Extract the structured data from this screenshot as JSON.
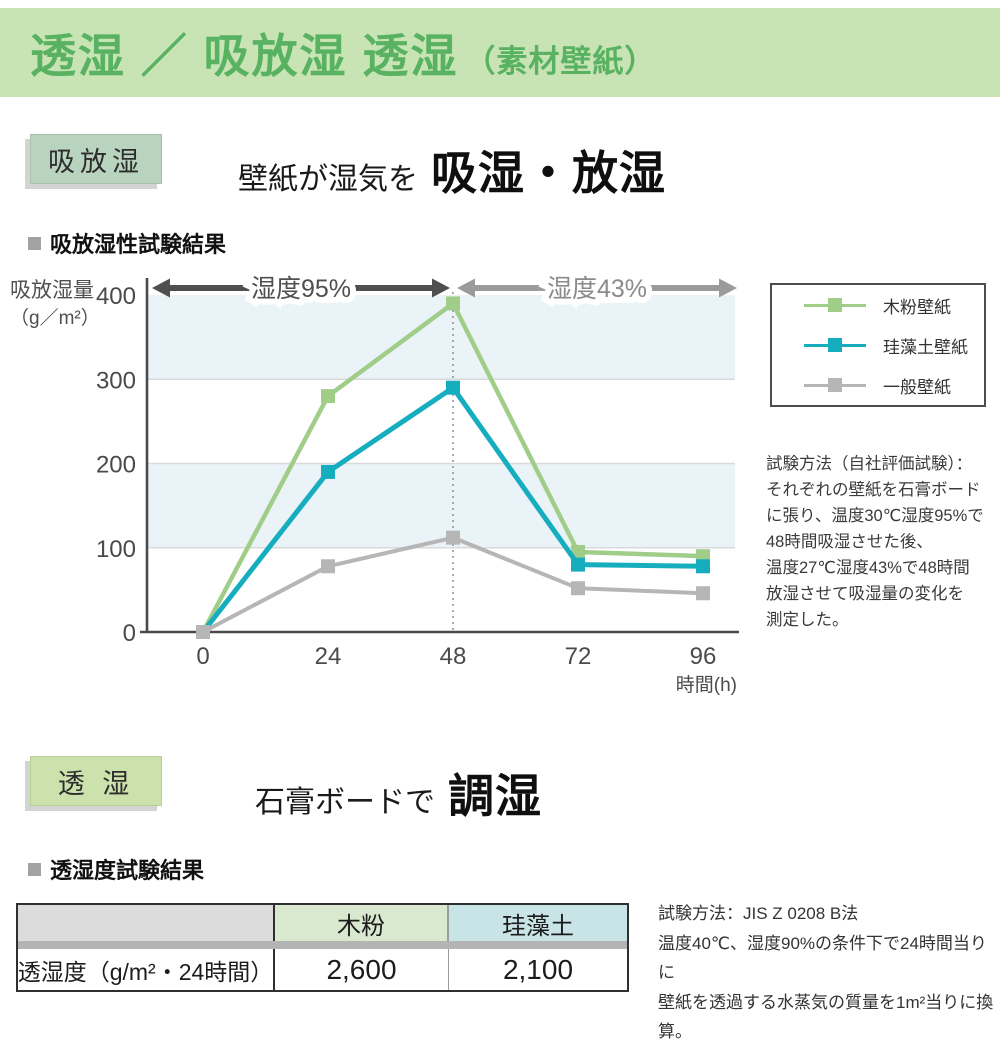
{
  "header": {
    "title_main": "透湿 ／ 吸放湿 透湿",
    "title_sub": "（素材壁紙）"
  },
  "section_absorption": {
    "tag": "吸放湿",
    "lead": "壁紙が湿気を",
    "headline": "吸湿・放湿",
    "result_heading": "吸放湿性試験結果",
    "method_note": "試験方法（自社評価試験）：\nそれぞれの壁紙を石膏ボード\nに張り、温度30℃湿度95%で\n48時間吸湿させた後、\n温度27℃湿度43%で48時間\n放湿させて吸湿量の変化を\n測定した。"
  },
  "chart_data": {
    "type": "line",
    "x": [
      0,
      24,
      48,
      72,
      96
    ],
    "xlabel": "時間(h)",
    "ylabel_lines": [
      "吸放湿量",
      "（g／m²）"
    ],
    "ylim": [
      0,
      400
    ],
    "yticks": [
      0,
      100,
      200,
      300,
      400
    ],
    "grid": true,
    "legend_position": "right",
    "bands": {
      "ranges": [
        [
          300,
          400
        ],
        [
          100,
          200
        ]
      ],
      "color": "#eaf3f7"
    },
    "dashed_line_x": 48,
    "series": [
      {
        "name": "木粉壁紙",
        "color": "#a0ce89",
        "values": [
          0,
          280,
          390,
          95,
          90
        ]
      },
      {
        "name": "珪藻土壁紙",
        "color": "#16adbf",
        "values": [
          0,
          190,
          290,
          80,
          78
        ]
      },
      {
        "name": "一般壁紙",
        "color": "#b6b6b6",
        "values": [
          0,
          78,
          112,
          52,
          46
        ]
      }
    ],
    "phase_arrows": [
      {
        "label": "湿度95%",
        "x_from": 0,
        "x_to": 48,
        "color": "#4f4f4f",
        "label_color": "#4f4f4f"
      },
      {
        "label": "湿度43%",
        "x_from": 48,
        "x_to": 96,
        "color": "#9b9b9b",
        "label_color": "#8a8a8a"
      }
    ]
  },
  "section_permeability": {
    "tag": "透 湿",
    "lead": "石膏ボードで",
    "headline": "調湿",
    "result_heading": "透湿度試験結果",
    "table": {
      "row_header": "透湿度（g/m²・24時間）",
      "columns": [
        "木粉",
        "珪藻土"
      ],
      "values": [
        "2,600",
        "2,100"
      ]
    },
    "method_note": "試験方法：JIS Z 0208 B法\n温度40℃、湿度90%の条件下で24時間当りに\n壁紙を透過する水蒸気の質量を1m²当りに換算。"
  }
}
